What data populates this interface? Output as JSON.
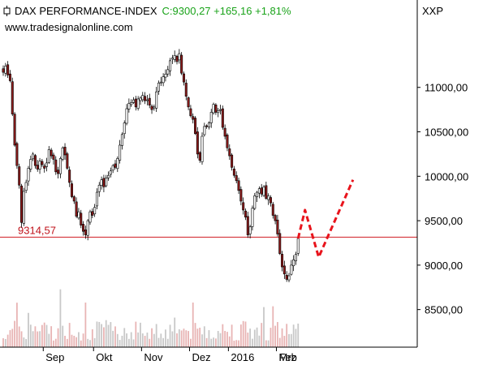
{
  "header": {
    "title": "DAX PERFORMANCE-INDEX",
    "quote": "C:9300,27 +165,16 +1,81%",
    "website": "www.tradesignalonline.com",
    "symbol": "XXP"
  },
  "colors": {
    "up_candle": "#ffffff",
    "down_candle": "#8b1a1a",
    "candle_outline": "#000000",
    "reference_line": "#d01c22",
    "projection": "#e8141c",
    "volume_up": "#c8c8c8",
    "volume_down": "#e8b4b4",
    "axis": "#000000",
    "quote_text": "#1aa31a"
  },
  "chart_data": {
    "type": "candlestick",
    "title": "DAX PERFORMANCE-INDEX",
    "y_axis": {
      "position": "right",
      "ticks": [
        8500,
        9000,
        9500,
        10000,
        10500,
        11000
      ],
      "tick_labels": [
        "8500,00",
        "9000,00",
        "9500,00",
        "10000,00",
        "10500,00",
        "11000,00"
      ],
      "range": [
        8150,
        11600
      ]
    },
    "x_axis": {
      "months": [
        "Sep",
        "Okt",
        "Nov",
        "Dez",
        "2016",
        "Feb",
        "Mrz"
      ],
      "bars_before_month": [
        18,
        22,
        21,
        21,
        17,
        21,
        0
      ]
    },
    "reference_line": {
      "value": 9314.57,
      "label": "9314,57"
    },
    "last_close": 9300.27,
    "projection": {
      "style": "dashed",
      "points": [
        {
          "bar_offset": 0,
          "value": 9300
        },
        {
          "bar_offset": 3,
          "value": 9620
        },
        {
          "bar_offset": 9,
          "value": 9090
        },
        {
          "bar_offset": 24,
          "value": 9960
        }
      ]
    },
    "closes": [
      11170,
      11240,
      11140,
      11075,
      10700,
      10350,
      10120,
      9900,
      9480,
      9830,
      9930,
      10090,
      10190,
      10250,
      10120,
      10080,
      10170,
      10130,
      10090,
      10150,
      10300,
      10230,
      10190,
      10050,
      10030,
      10200,
      10320,
      10240,
      10090,
      9930,
      9770,
      9720,
      9550,
      9600,
      9450,
      9380,
      9340,
      9500,
      9600,
      9560,
      9650,
      9820,
      9900,
      9960,
      9880,
      9980,
      10010,
      10060,
      10120,
      10100,
      10200,
      10350,
      10470,
      10600,
      10760,
      10820,
      10830,
      10860,
      10780,
      10870,
      10880,
      10910,
      10850,
      10860,
      10800,
      10750,
      10780,
      10950,
      11050,
      11060,
      11120,
      11150,
      11200,
      11300,
      11330,
      11360,
      11290,
      11380,
      11160,
      11060,
      10900,
      10780,
      10680,
      10640,
      10480,
      10250,
      10180,
      10450,
      10560,
      10560,
      10600,
      10720,
      10810,
      10720,
      10740,
      10750,
      10550,
      10450,
      10320,
      10230,
      10100,
      10010,
      9950,
      9840,
      9720,
      9620,
      9540,
      9340,
      9430,
      9640,
      9780,
      9820,
      9860,
      9800,
      9880,
      9750,
      9780,
      9700,
      9560,
      9500,
      9350,
      9130,
      8980,
      8900,
      8840,
      8880,
      9000,
      9060,
      9120,
      9300
    ]
  }
}
